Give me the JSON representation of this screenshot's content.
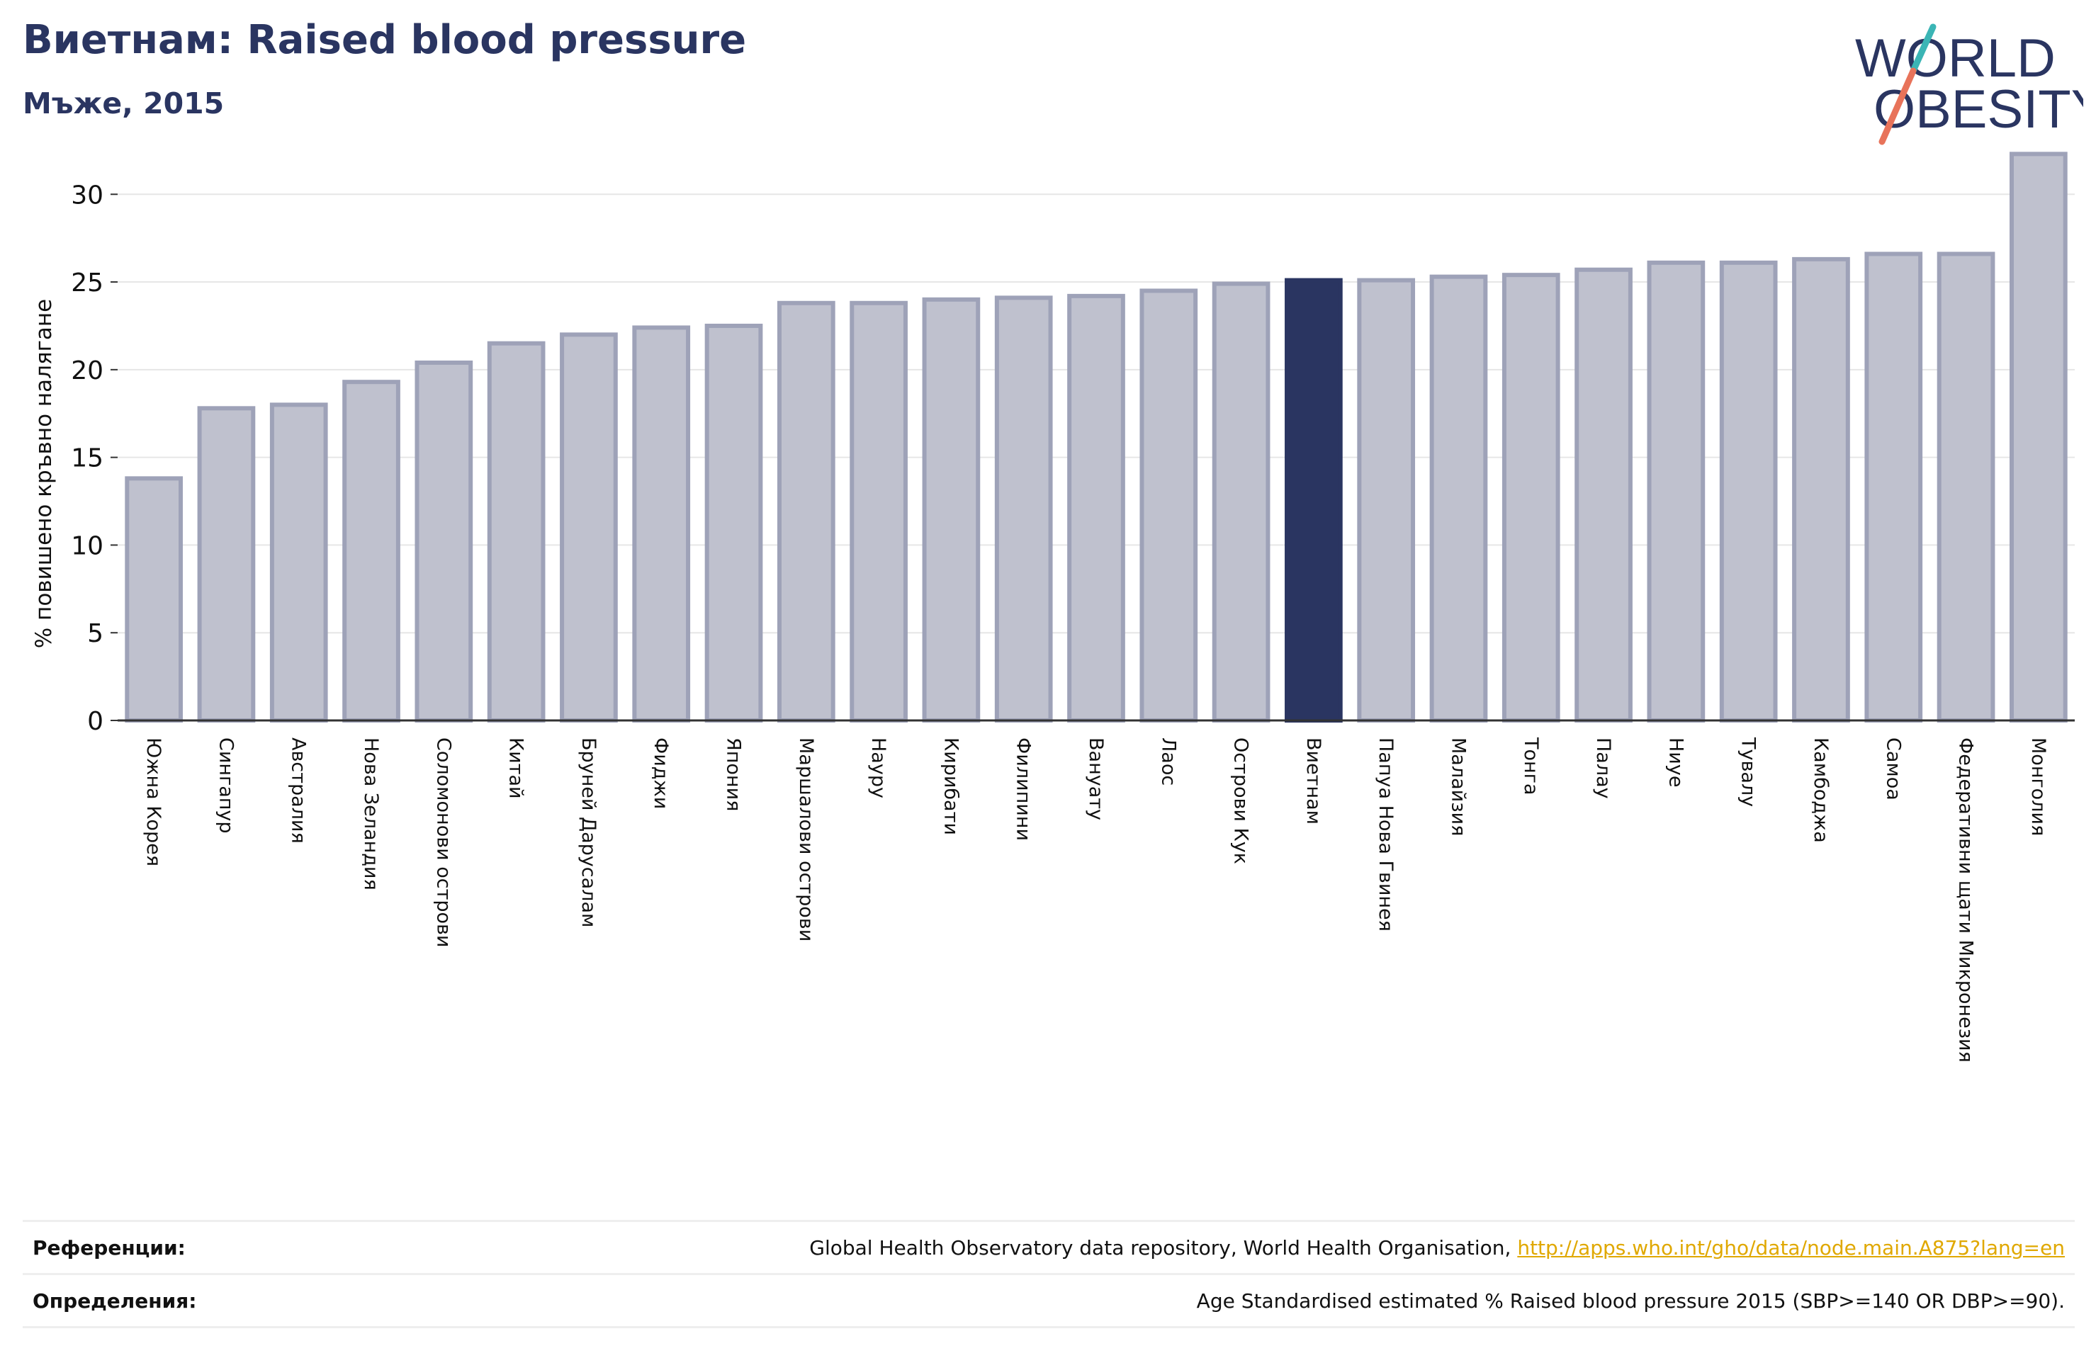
{
  "header": {
    "title": "Виетнам: Raised blood pressure",
    "subtitle": "Мъже, 2015"
  },
  "logo": {
    "line1": "WORLD",
    "line2": "OBESITY",
    "colors": {
      "text": "#2a3561",
      "slash_top": "#3bb5b5",
      "slash_bottom": "#e8735a"
    }
  },
  "colors": {
    "bar": "#bfc1ce",
    "bar_border": "#9ea2b8",
    "highlight": "#2a3561",
    "grid": "#e6e6e6",
    "axis": "#333333"
  },
  "chart_data": {
    "type": "bar",
    "title": "Виетнам: Raised blood pressure",
    "ylabel": "% повишено кръвно налягане",
    "xlabel": "",
    "ylim": [
      0,
      33
    ],
    "yticks": [
      0,
      5,
      10,
      15,
      20,
      25,
      30
    ],
    "grid": true,
    "highlight": "Виетнам",
    "categories": [
      "Южна Корея",
      "Сингапур",
      "Австралия",
      "Нова Зеландия",
      "Соломонови острови",
      "Китай",
      "Бруней Дарусалам",
      "Фиджи",
      "Япония",
      "Маршалови острови",
      "Науру",
      "Кирибати",
      "Филипини",
      "Вануату",
      "Лаос",
      "Острови Кук",
      "Виетнам",
      "Папуа Нова Гвинея",
      "Малайзия",
      "Тонга",
      "Палау",
      "Ниуе",
      "Тувалу",
      "Камбоджа",
      "Самоа",
      "Федеративни щати Микронезия",
      "Монголия"
    ],
    "values": [
      13.8,
      17.8,
      18.0,
      19.3,
      20.4,
      21.5,
      22.0,
      22.4,
      22.5,
      23.8,
      23.8,
      24.0,
      24.1,
      24.2,
      24.5,
      24.9,
      25.1,
      25.1,
      25.3,
      25.4,
      25.7,
      26.1,
      26.1,
      26.3,
      26.6,
      26.6,
      32.3
    ]
  },
  "references": {
    "label": "Референции:",
    "text": "Global Health Observatory data repository, World Health Organisation, ",
    "link": "http://apps.who.int/gho/data/node.main.A875?lang=en"
  },
  "definitions": {
    "label": "Определения:",
    "text": "Age Standardised estimated % Raised blood pressure 2015 (SBP>=140 OR DBP>=90)."
  }
}
